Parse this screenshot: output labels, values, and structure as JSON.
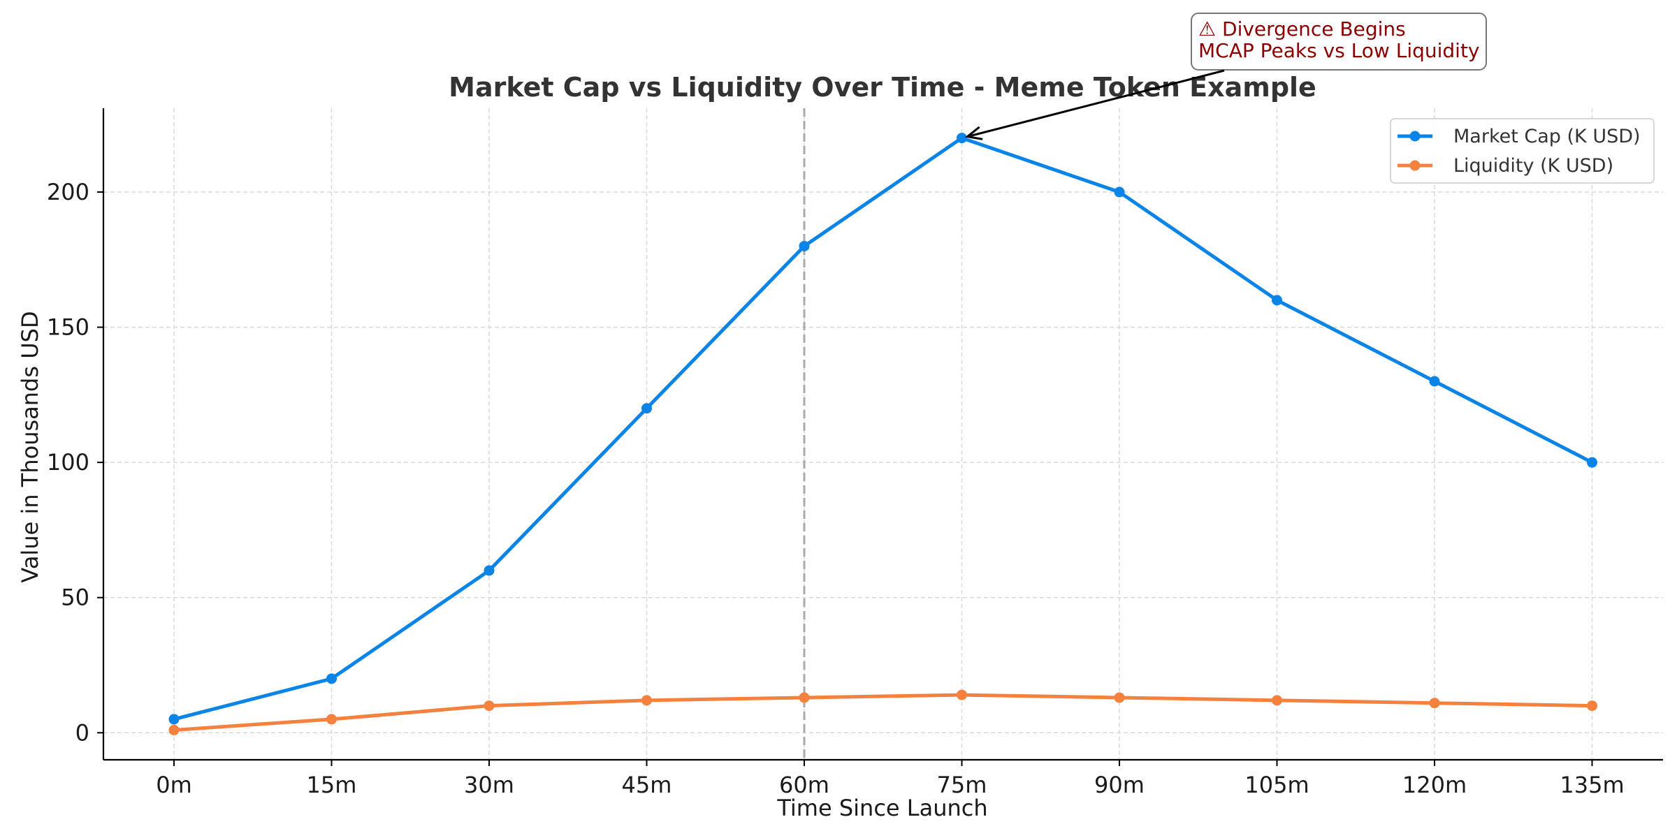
{
  "chart_data": {
    "type": "line",
    "title": "Market Cap vs Liquidity Over Time - Meme Token Example",
    "xlabel": "Time Since Launch",
    "ylabel": "Value in Thousands USD",
    "categories": [
      "0m",
      "15m",
      "30m",
      "45m",
      "60m",
      "75m",
      "90m",
      "105m",
      "120m",
      "135m"
    ],
    "series": [
      {
        "name": "Market Cap (K USD)",
        "color": "#0a84e6",
        "values": [
          5,
          20,
          60,
          120,
          180,
          220,
          200,
          160,
          130,
          100
        ]
      },
      {
        "name": "Liquidity (K USD)",
        "color": "#f5813f",
        "values": [
          1,
          5,
          10,
          12,
          13,
          14,
          13,
          12,
          11,
          10
        ]
      }
    ],
    "ylim": [
      -10,
      231
    ],
    "yticks": [
      0,
      50,
      100,
      150,
      200
    ],
    "grid": true,
    "legend_position": "top-right",
    "vline": {
      "category": "60m",
      "style": "dashed",
      "color": "#aaaaaa"
    },
    "annotation": {
      "lines": [
        "⚠ Divergence Begins",
        "MCAP Peaks vs Low Liquidity"
      ],
      "target_category": "75m",
      "target_value": 220,
      "series": "Market Cap (K USD)",
      "color": "#8b0000"
    }
  }
}
